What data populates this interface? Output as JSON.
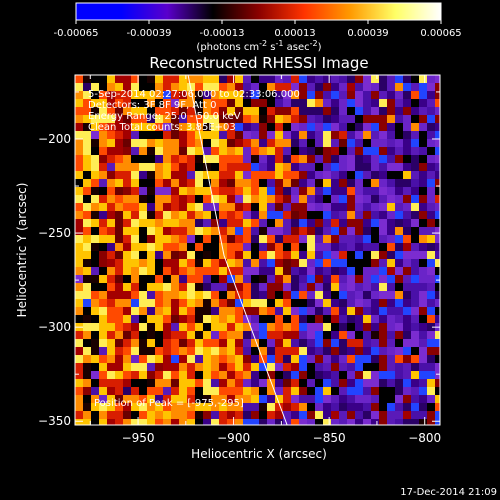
{
  "colorbar": {
    "ticks": [
      "-0.00065",
      "-0.00039",
      "-0.00013",
      "0.00013",
      "0.00039",
      "0.00065"
    ],
    "unit_html": "(photons cm<tspan dy='-4' font-size='8'>-2</tspan><tspan dy='4'> s</tspan><tspan dy='-4' font-size='8'>-1</tspan><tspan dy='4'> asec</tspan><tspan dy='-4' font-size='8'>-2</tspan><tspan dy='4'>)</tspan>",
    "gradient": [
      "#0000ff",
      "#0000ff",
      "#5a00cc",
      "#000000",
      "#8a0000",
      "#ff3300",
      "#ff9900",
      "#ffff66",
      "#ffffff"
    ]
  },
  "title": "Reconstructed RHESSI Image",
  "info_lines": [
    "5-Sep-2014 02:27:06.000 to 02:33:06.000",
    "Detectors: 3F 8F 9F, Att 0",
    "Energy Range: 25.0 - 50.0 keV",
    "Clean    Total counts: 3.85E+03"
  ],
  "peak_label": "Position of Peak = [-975,-295]",
  "footer_timestamp": "17-Dec-2014 21:09",
  "chart_data": {
    "type": "heatmap",
    "title": "Reconstructed RHESSI Image",
    "xlabel": "Heliocentric X (arcsec)",
    "ylabel": "Heliocentric Y (arcsec)",
    "xlim": [
      -983,
      -792
    ],
    "ylim": [
      -352,
      -166
    ],
    "x_ticks": [
      -950,
      -900,
      -850,
      -800
    ],
    "y_ticks": [
      -200,
      -250,
      -300,
      -350
    ],
    "x_tick_labels": [
      "−950",
      "−900",
      "−850",
      "−800"
    ],
    "y_tick_labels": [
      "−200",
      "−250",
      "−300",
      "−350"
    ],
    "limb_line": [
      [
        -925,
        -160
      ],
      [
        -905,
        -262
      ],
      [
        -872,
        -352
      ]
    ],
    "peak_position": [
      -975,
      -295
    ],
    "color_range": [
      -0.00065,
      0.00065
    ]
  }
}
